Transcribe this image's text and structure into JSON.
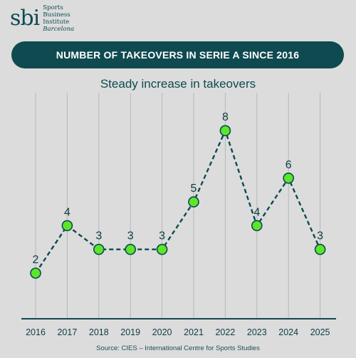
{
  "logo": {
    "mark": "sbi",
    "line1": "Sports",
    "line2": "Business",
    "line3": "Institute",
    "line4": "Barcelona"
  },
  "colors": {
    "background": "#dcdcdc",
    "banner": "#0e4a50",
    "line": "#0e4a50",
    "marker": "#5ce62a"
  },
  "chart_data": {
    "type": "line",
    "title": "NUMBER OF TAKEOVERS IN SERIE A SINCE 2016",
    "subtitle": "Steady increase in takeovers",
    "x": [
      "2016",
      "2017",
      "2018",
      "2019",
      "2020",
      "2021",
      "2022",
      "2023",
      "2024",
      "2025"
    ],
    "series": [
      {
        "values": [
          2,
          4,
          3,
          3,
          3,
          5,
          8,
          4,
          6,
          3
        ]
      }
    ],
    "ylim": [
      0,
      8
    ],
    "grid": "vertical",
    "line_style": "dashed",
    "source": "Source: CIES – International Centre for Sports Studies"
  }
}
